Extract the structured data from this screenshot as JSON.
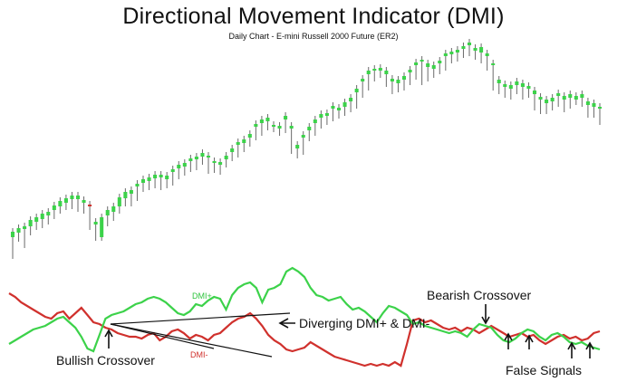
{
  "chart_data": {
    "title": "Directional Movement Indicator (DMI)",
    "subtitle": "Daily Chart - E-mini Russell 2000 Future (ER2)",
    "type": "candlestick+line",
    "colors": {
      "up": "#3cd24a",
      "down": "#d0312d",
      "text": "#111111"
    },
    "price": {
      "candles": [
        [
          262,
          256,
          278,
          286
        ],
        [
          257,
          252,
          262,
          267
        ],
        [
          253,
          250,
          268,
          274
        ],
        [
          250,
          243,
          256,
          260
        ],
        [
          245,
          240,
          250,
          254
        ],
        [
          242,
          236,
          247,
          252
        ],
        [
          238,
          234,
          245,
          248
        ],
        [
          232,
          227,
          238,
          242
        ],
        [
          228,
          222,
          232,
          236
        ],
        [
          224,
          219,
          228,
          232
        ],
        [
          220,
          216,
          227,
          231
        ],
        [
          220,
          216,
          230,
          234
        ],
        [
          224,
          221,
          232,
          236
        ],
        [
          226,
          228,
          250,
          254
        ],
        [
          248,
          245,
          262,
          266
        ],
        [
          262,
          240,
          246,
          266
        ],
        [
          238,
          232,
          246,
          250
        ],
        [
          234,
          228,
          240,
          244
        ],
        [
          228,
          218,
          233,
          236
        ],
        [
          219,
          212,
          224,
          228
        ],
        [
          214,
          210,
          224,
          228
        ],
        [
          206,
          203,
          218,
          222
        ],
        [
          202,
          198,
          208,
          212
        ],
        [
          200,
          196,
          206,
          210
        ],
        [
          197,
          193,
          204,
          208
        ],
        [
          196,
          193,
          206,
          210
        ],
        [
          198,
          194,
          205,
          208
        ],
        [
          190,
          187,
          200,
          205
        ],
        [
          186,
          182,
          194,
          198
        ],
        [
          184,
          180,
          190,
          194
        ],
        [
          178,
          175,
          186,
          190
        ],
        [
          176,
          173,
          184,
          188
        ],
        [
          173,
          169,
          178,
          182
        ],
        [
          173,
          172,
          188,
          192
        ],
        [
          180,
          178,
          188,
          191
        ],
        [
          182,
          179,
          190,
          193
        ],
        [
          176,
          172,
          182,
          185
        ],
        [
          168,
          164,
          174,
          178
        ],
        [
          160,
          157,
          170,
          174
        ],
        [
          158,
          154,
          164,
          168
        ],
        [
          152,
          148,
          158,
          162
        ],
        [
          140,
          137,
          150,
          155
        ],
        [
          136,
          132,
          145,
          150
        ],
        [
          134,
          130,
          140,
          144
        ],
        [
          140,
          138,
          142,
          146
        ],
        [
          142,
          139,
          146,
          150
        ],
        [
          132,
          128,
          143,
          147
        ],
        [
          142,
          139,
          166,
          170
        ],
        [
          164,
          160,
          172,
          175
        ],
        [
          152,
          149,
          168,
          171
        ],
        [
          144,
          140,
          152,
          156
        ],
        [
          136,
          132,
          146,
          150
        ],
        [
          130,
          126,
          138,
          142
        ],
        [
          128,
          125,
          134,
          138
        ],
        [
          120,
          117,
          130,
          134
        ],
        [
          122,
          119,
          128,
          131
        ],
        [
          118,
          113,
          124,
          128
        ],
        [
          112,
          108,
          120,
          124
        ],
        [
          102,
          98,
          116,
          120
        ],
        [
          90,
          87,
          104,
          108
        ],
        [
          82,
          78,
          96,
          100
        ],
        [
          78,
          76,
          86,
          90
        ],
        [
          78,
          75,
          82,
          86
        ],
        [
          82,
          78,
          93,
          96
        ],
        [
          90,
          87,
          100,
          104
        ],
        [
          92,
          88,
          98,
          102
        ],
        [
          88,
          84,
          96,
          100
        ],
        [
          80,
          77,
          90,
          94
        ],
        [
          72,
          69,
          84,
          88
        ],
        [
          68,
          66,
          90,
          94
        ],
        [
          74,
          70,
          86,
          90
        ],
        [
          76,
          72,
          82,
          86
        ],
        [
          70,
          67,
          78,
          82
        ],
        [
          62,
          59,
          74,
          78
        ],
        [
          60,
          57,
          66,
          70
        ],
        [
          58,
          55,
          64,
          68
        ],
        [
          54,
          51,
          60,
          64
        ],
        [
          50,
          47,
          58,
          62
        ],
        [
          56,
          53,
          62,
          66
        ],
        [
          58,
          52,
          64,
          70
        ],
        [
          62,
          59,
          74,
          78
        ],
        [
          72,
          70,
          96,
          100
        ],
        [
          92,
          88,
          100,
          104
        ],
        [
          96,
          93,
          104,
          108
        ],
        [
          98,
          94,
          106,
          110
        ],
        [
          94,
          90,
          100,
          104
        ],
        [
          96,
          92,
          106,
          110
        ],
        [
          98,
          95,
          104,
          108
        ],
        [
          104,
          100,
          118,
          122
        ],
        [
          110,
          107,
          122,
          126
        ],
        [
          114,
          110,
          122,
          126
        ],
        [
          112,
          108,
          118,
          122
        ],
        [
          106,
          103,
          114,
          118
        ],
        [
          110,
          106,
          120,
          124
        ],
        [
          108,
          104,
          116,
          120
        ],
        [
          110,
          106,
          112,
          116
        ],
        [
          108,
          104,
          114,
          118
        ],
        [
          116,
          112,
          126,
          130
        ],
        [
          118,
          114,
          126,
          130
        ],
        [
          120,
          118,
          134,
          138
        ]
      ]
    },
    "dmi": {
      "dmi_plus": [
        380,
        376,
        372,
        368,
        364,
        362,
        360,
        356,
        352,
        350,
        356,
        362,
        372,
        385,
        388,
        370,
        352,
        348,
        346,
        344,
        340,
        336,
        334,
        330,
        328,
        330,
        334,
        340,
        346,
        348,
        344,
        336,
        338,
        332,
        328,
        330,
        342,
        326,
        318,
        314,
        312,
        318,
        334,
        320,
        318,
        314,
        300,
        296,
        300,
        306,
        318,
        326,
        328,
        332,
        330,
        328,
        336,
        342,
        340,
        344,
        350,
        356,
        346,
        338,
        340,
        344,
        348,
        358,
        356,
        360,
        362,
        364,
        366,
        368,
        366,
        368,
        372,
        364,
        358,
        360,
        362,
        370,
        376,
        378,
        374,
        368,
        364,
        366,
        372,
        376,
        370,
        368,
        372,
        378,
        380,
        378,
        382,
        384,
        386
      ],
      "dmi_minus": [
        324,
        328,
        334,
        338,
        342,
        346,
        350,
        352,
        346,
        344,
        352,
        346,
        340,
        348,
        356,
        358,
        362,
        364,
        368,
        370,
        372,
        372,
        374,
        370,
        368,
        376,
        372,
        366,
        364,
        368,
        374,
        370,
        372,
        376,
        370,
        368,
        362,
        356,
        352,
        350,
        346,
        352,
        360,
        370,
        376,
        380,
        386,
        388,
        386,
        384,
        378,
        382,
        386,
        390,
        394,
        396,
        398,
        400,
        402,
        404,
        402,
        404,
        402,
        404,
        400,
        404,
        380,
        354,
        352,
        356,
        354,
        358,
        362,
        364,
        362,
        366,
        362,
        364,
        368,
        364,
        360,
        364,
        368,
        372,
        370,
        368,
        372,
        370,
        376,
        380,
        376,
        372,
        370,
        374,
        372,
        376,
        374,
        368,
        366
      ]
    },
    "annotations": [
      "DMI+",
      "DMI-",
      "Diverging DMI+ & DMI-",
      "Bullish Crossover",
      "Bearish Crossover",
      "False Signals"
    ]
  }
}
